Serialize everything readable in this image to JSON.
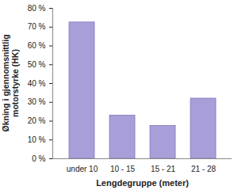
{
  "chart_data": {
    "type": "bar",
    "x_label": "Lengdegruppe (meter)",
    "y_label": "Økning i gjennomsnittlig motorstyrke (HK)",
    "categories": [
      "under 10",
      "10 - 15",
      "15 - 21",
      "21 - 28"
    ],
    "values": [
      72.5,
      23,
      17.5,
      32
    ],
    "color": "#a99fd8",
    "ylim": [
      0,
      80
    ],
    "yticks": [
      {
        "value": 0,
        "label": "0 %"
      },
      {
        "value": 10,
        "label": "10 %"
      },
      {
        "value": 20,
        "label": "20 %"
      },
      {
        "value": 30,
        "label": "30 %"
      },
      {
        "value": 40,
        "label": "40 %"
      },
      {
        "value": 50,
        "label": "50 %"
      },
      {
        "value": 60,
        "label": "60 %"
      },
      {
        "value": 70,
        "label": "70 %"
      },
      {
        "value": 80,
        "label": "80 %"
      }
    ],
    "grid": false
  }
}
